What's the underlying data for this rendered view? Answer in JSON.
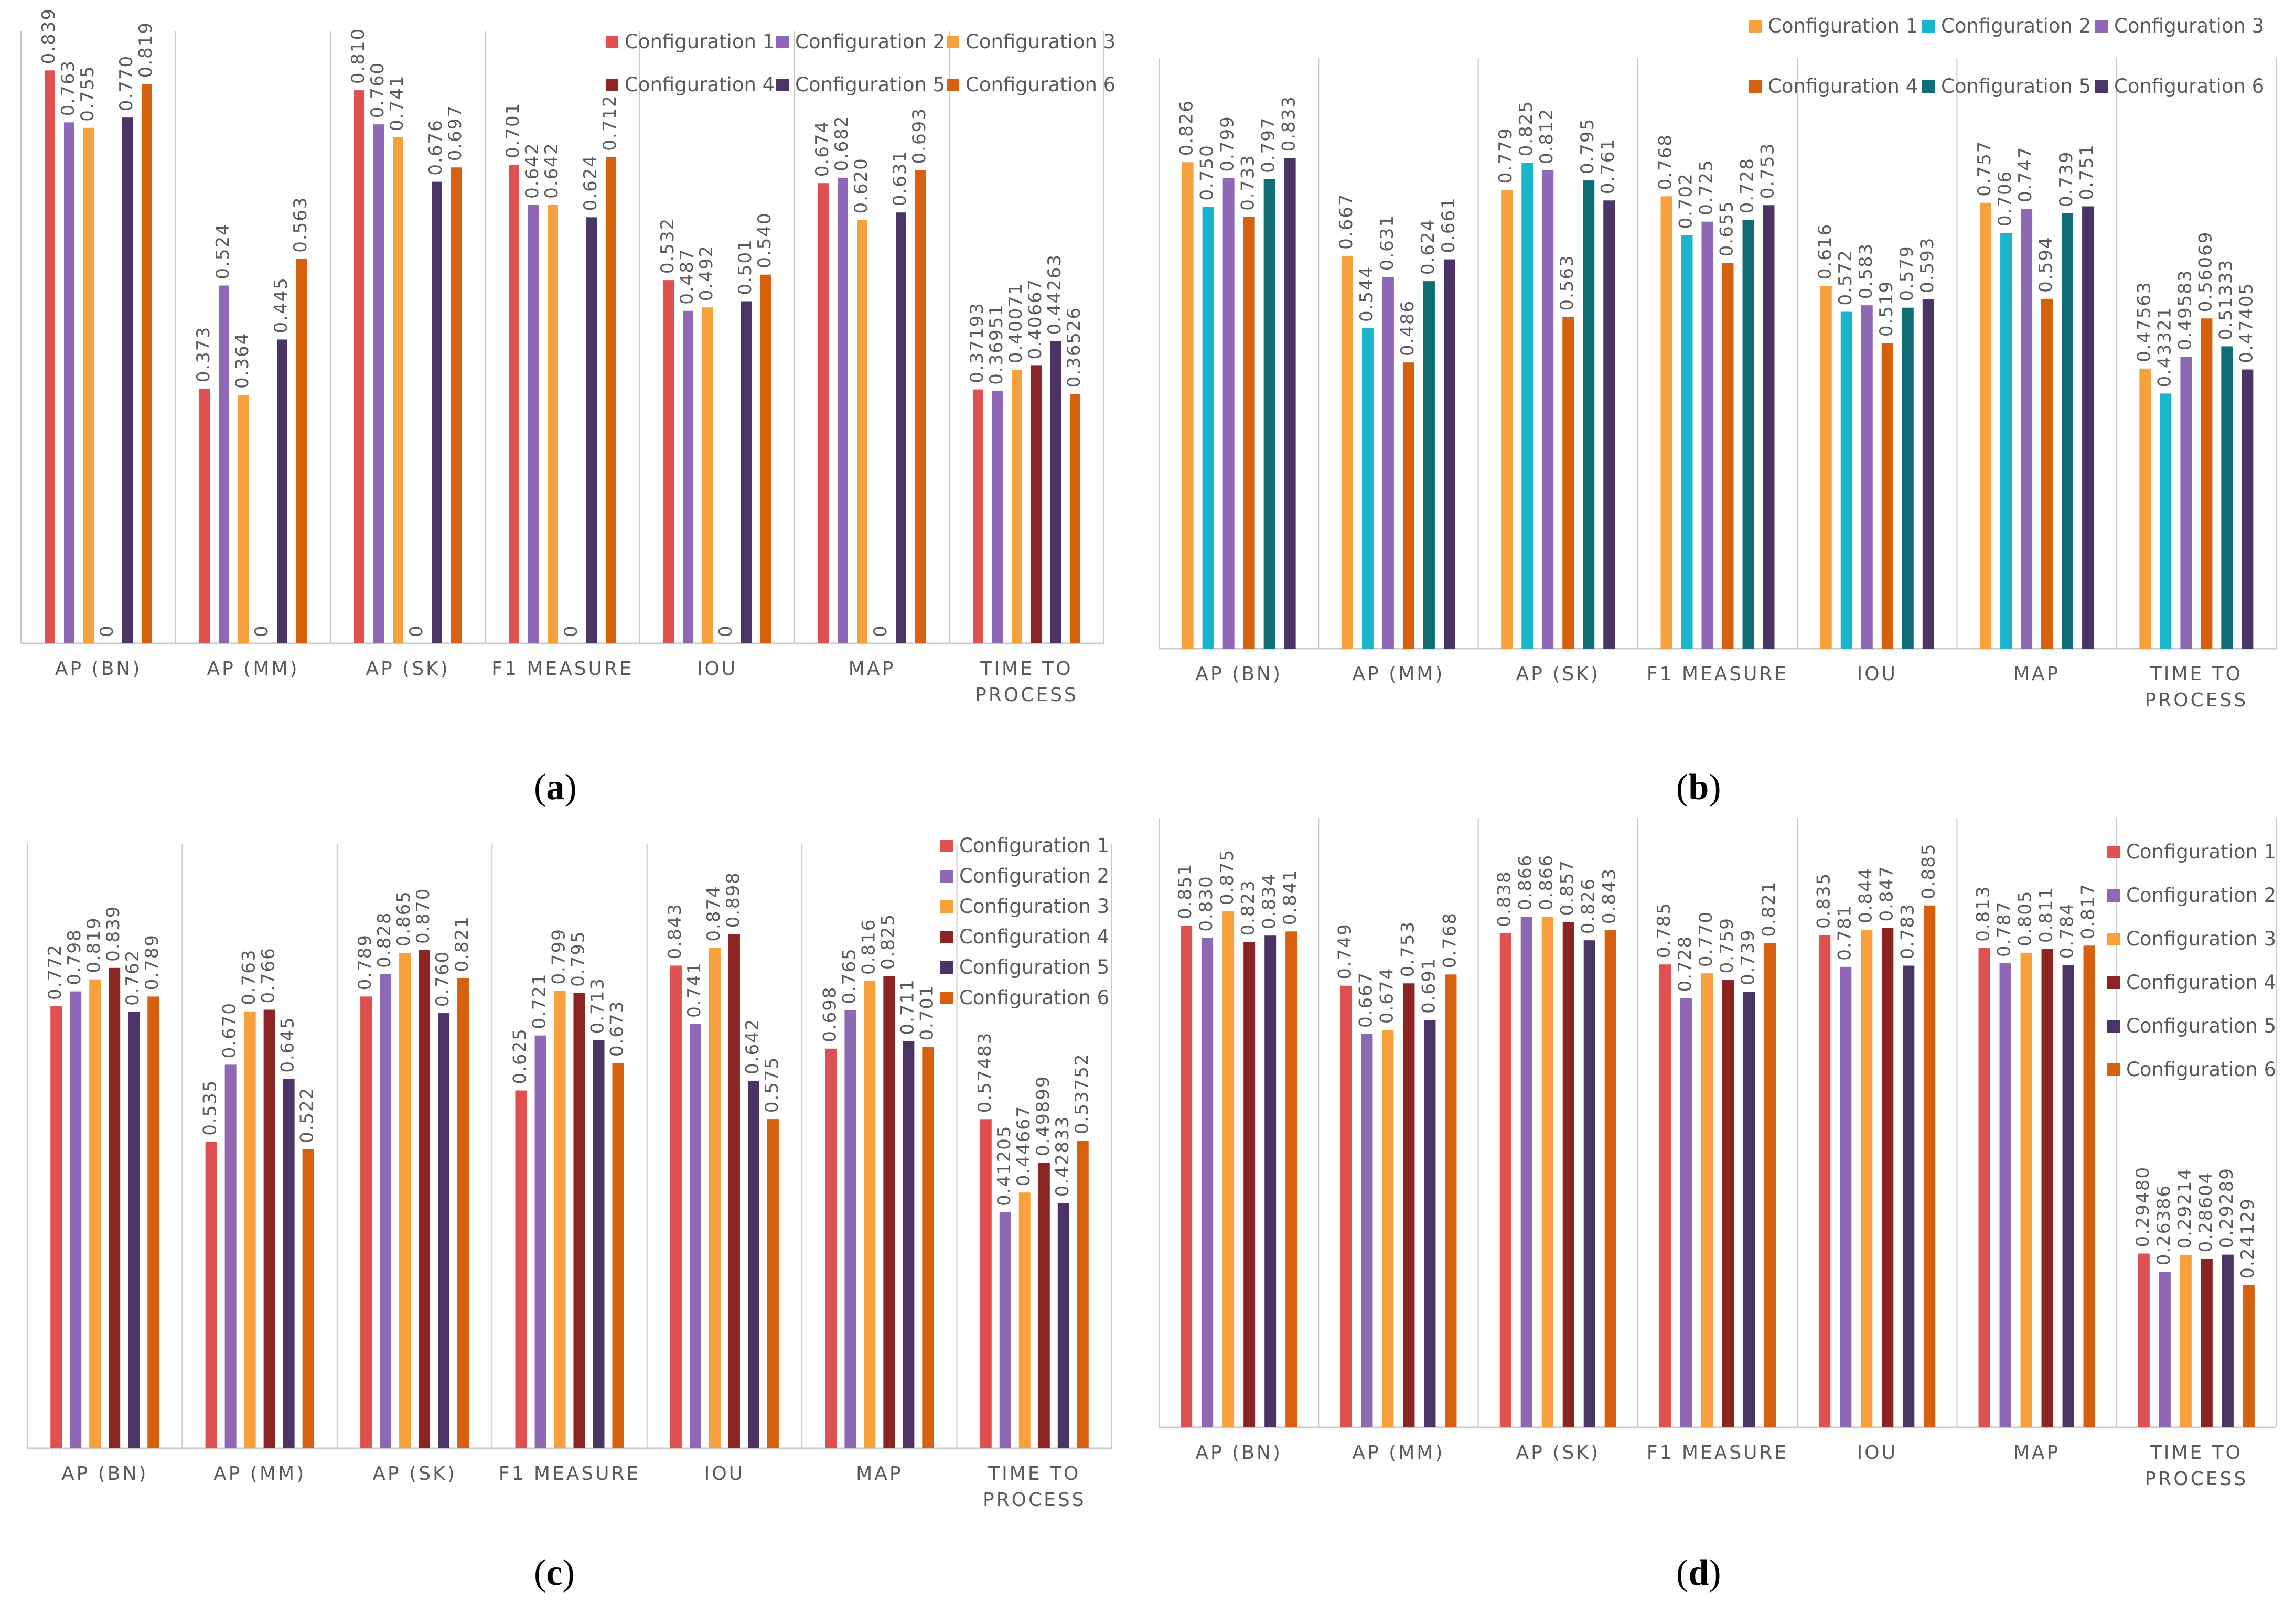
{
  "colors": {
    "palette_a": [
      "#e05050",
      "#8e68b4",
      "#f7a03c",
      "#8c2424",
      "#4c3466",
      "#d7600e"
    ],
    "palette_b": [
      "#f7a03c",
      "#1ab5cc",
      "#8e68b4",
      "#d7600e",
      "#0f6e74",
      "#4c3466"
    ],
    "axis": "#c8c8c8",
    "label": "#595959"
  },
  "captions": [
    {
      "open": "(",
      "letter": "a",
      "close": ")"
    },
    {
      "open": "(",
      "letter": "b",
      "close": ")"
    },
    {
      "open": "(",
      "letter": "c",
      "close": ")"
    },
    {
      "open": "(",
      "letter": "d",
      "close": ")"
    }
  ],
  "chart_data": [
    {
      "type": "bar",
      "panel": "a",
      "categories": [
        "AP (BN)",
        "AP (MM)",
        "AP (SK)",
        "F1 MEASURE",
        "IOU",
        "MAP",
        "TIME TO PROCESS"
      ],
      "legend_position": "top-right",
      "ylim": [
        0,
        0.85
      ],
      "series": [
        {
          "name": "Configuration 1",
          "values": [
            0.839,
            0.373,
            0.81,
            0.701,
            0.532,
            0.674,
            0.37193
          ],
          "labels": [
            "0.839",
            "0.373",
            "0.810",
            "0.701",
            "0.532",
            "0.674",
            "0.37193"
          ]
        },
        {
          "name": "Configuration 2",
          "values": [
            0.763,
            0.524,
            0.76,
            0.642,
            0.487,
            0.682,
            0.36951
          ],
          "labels": [
            "0.763",
            "0.524",
            "0.760",
            "0.642",
            "0.487",
            "0.682",
            "0.36951"
          ]
        },
        {
          "name": "Configuration 3",
          "values": [
            0.755,
            0.364,
            0.741,
            0.642,
            0.492,
            0.62,
            0.40071
          ],
          "labels": [
            "0.755",
            "0.364",
            "0.741",
            "0.642",
            "0.492",
            "0.620",
            "0.40071"
          ]
        },
        {
          "name": "Configuration 4",
          "values": [
            0,
            0,
            0,
            0,
            0,
            0,
            0.40667
          ],
          "labels": [
            "0",
            "0",
            "0",
            "0",
            "0",
            "0",
            "0.40667"
          ]
        },
        {
          "name": "Configuration 5",
          "values": [
            0.77,
            0.445,
            0.676,
            0.624,
            0.501,
            0.631,
            0.44263
          ],
          "labels": [
            "0.770",
            "0.445",
            "0.676",
            "0.624",
            "0.501",
            "0.631",
            "0.44263"
          ]
        },
        {
          "name": "Configuration 6",
          "values": [
            0.819,
            0.563,
            0.697,
            0.712,
            0.54,
            0.693,
            0.36526
          ],
          "labels": [
            "0.819",
            "0.563",
            "0.697",
            "0.712",
            "0.540",
            "0.693",
            "0.36526"
          ]
        }
      ]
    },
    {
      "type": "bar",
      "panel": "b",
      "categories": [
        "AP (BN)",
        "AP (MM)",
        "AP (SK)",
        "F1 MEASURE",
        "IOU",
        "MAP",
        "TIME TO PROCESS"
      ],
      "legend_position": "top",
      "ylim": [
        0,
        0.95
      ],
      "series": [
        {
          "name": "Configuration 1",
          "values": [
            0.826,
            0.667,
            0.779,
            0.768,
            0.616,
            0.757,
            0.47563
          ],
          "labels": [
            "0.826",
            "0.667",
            "0.779",
            "0.768",
            "0.616",
            "0.757",
            "0.47563"
          ]
        },
        {
          "name": "Configuration 2",
          "values": [
            0.75,
            0.544,
            0.825,
            0.702,
            0.572,
            0.706,
            0.43321
          ],
          "labels": [
            "0.750",
            "0.544",
            "0.825",
            "0.702",
            "0.572",
            "0.706",
            "0.43321"
          ]
        },
        {
          "name": "Configuration 3",
          "values": [
            0.799,
            0.631,
            0.812,
            0.725,
            0.583,
            0.747,
            0.49583
          ],
          "labels": [
            "0.799",
            "0.631",
            "0.812",
            "0.725",
            "0.583",
            "0.747",
            "0.49583"
          ]
        },
        {
          "name": "Configuration 4",
          "values": [
            0.733,
            0.486,
            0.563,
            0.655,
            0.519,
            0.594,
            0.56069
          ],
          "labels": [
            "0.733",
            "0.486",
            "0.563",
            "0.655",
            "0.519",
            "0.594",
            "0.56069"
          ]
        },
        {
          "name": "Configuration 5",
          "values": [
            0.797,
            0.624,
            0.795,
            0.728,
            0.579,
            0.739,
            0.51333
          ],
          "labels": [
            "0.797",
            "0.624",
            "0.795",
            "0.728",
            "0.579",
            "0.739",
            "0.51333"
          ]
        },
        {
          "name": "Configuration 6",
          "values": [
            0.833,
            0.661,
            0.761,
            0.753,
            0.593,
            0.751,
            0.47405
          ],
          "labels": [
            "0.833",
            "0.661",
            "0.761",
            "0.753",
            "0.593",
            "0.751",
            "0.47405"
          ]
        }
      ]
    },
    {
      "type": "bar",
      "panel": "c",
      "categories": [
        "AP (BN)",
        "AP (MM)",
        "AP (SK)",
        "F1 MEASURE",
        "IOU",
        "MAP",
        "TIME TO PROCESS"
      ],
      "legend_position": "right",
      "ylim": [
        0,
        1.0
      ],
      "series": [
        {
          "name": "Configuration 1",
          "values": [
            0.772,
            0.535,
            0.789,
            0.625,
            0.843,
            0.698,
            0.57483
          ],
          "labels": [
            "0.772",
            "0.535",
            "0.789",
            "0.625",
            "0.843",
            "0.698",
            "0.57483"
          ]
        },
        {
          "name": "Configuration 2",
          "values": [
            0.798,
            0.67,
            0.828,
            0.721,
            0.741,
            0.765,
            0.41205
          ],
          "labels": [
            "0.798",
            "0.670",
            "0.828",
            "0.721",
            "0.741",
            "0.765",
            "0.41205"
          ]
        },
        {
          "name": "Configuration 3",
          "values": [
            0.819,
            0.763,
            0.865,
            0.799,
            0.874,
            0.816,
            0.44667
          ],
          "labels": [
            "0.819",
            "0.763",
            "0.865",
            "0.799",
            "0.874",
            "0.816",
            "0.44667"
          ]
        },
        {
          "name": "Configuration 4",
          "values": [
            0.839,
            0.766,
            0.87,
            0.795,
            0.898,
            0.825,
            0.49899
          ],
          "labels": [
            "0.839",
            "0.766",
            "0.870",
            "0.795",
            "0.898",
            "0.825",
            "0.49899"
          ]
        },
        {
          "name": "Configuration 5",
          "values": [
            0.762,
            0.645,
            0.76,
            0.713,
            0.642,
            0.711,
            0.42833
          ],
          "labels": [
            "0.762",
            "0.645",
            "0.760",
            "0.713",
            "0.642",
            "0.711",
            "0.42833"
          ]
        },
        {
          "name": "Configuration 6",
          "values": [
            0.789,
            0.522,
            0.821,
            0.673,
            0.575,
            0.701,
            0.53752
          ],
          "labels": [
            "0.789",
            "0.522",
            "0.821",
            "0.673",
            "0.575",
            "0.701",
            "0.53752"
          ]
        }
      ]
    },
    {
      "type": "bar",
      "panel": "d",
      "categories": [
        "AP (BN)",
        "AP (MM)",
        "AP (SK)",
        "F1 MEASURE",
        "IOU",
        "MAP",
        "TIME TO PROCESS"
      ],
      "legend_position": "right",
      "ylim": [
        0,
        0.98
      ],
      "series": [
        {
          "name": "Configuration 1",
          "values": [
            0.851,
            0.749,
            0.838,
            0.785,
            0.835,
            0.813,
            0.2948
          ],
          "labels": [
            "0.851",
            "0.749",
            "0.838",
            "0.785",
            "0.835",
            "0.813",
            "0.29480"
          ]
        },
        {
          "name": "Configuration 2",
          "values": [
            0.83,
            0.667,
            0.866,
            0.728,
            0.781,
            0.787,
            0.26386
          ],
          "labels": [
            "0.830",
            "0.667",
            "0.866",
            "0.728",
            "0.781",
            "0.787",
            "0.26386"
          ]
        },
        {
          "name": "Configuration 3",
          "values": [
            0.875,
            0.674,
            0.866,
            0.77,
            0.844,
            0.805,
            0.29214
          ],
          "labels": [
            "0.875",
            "0.674",
            "0.866",
            "0.770",
            "0.844",
            "0.805",
            "0.29214"
          ]
        },
        {
          "name": "Configuration 4",
          "values": [
            0.823,
            0.753,
            0.857,
            0.759,
            0.847,
            0.811,
            0.28604
          ],
          "labels": [
            "0.823",
            "0.753",
            "0.857",
            "0.759",
            "0.847",
            "0.811",
            "0.28604"
          ]
        },
        {
          "name": "Configuration 5",
          "values": [
            0.834,
            0.691,
            0.826,
            0.739,
            0.783,
            0.784,
            0.29289
          ],
          "labels": [
            "0.834",
            "0.691",
            "0.826",
            "0.739",
            "0.783",
            "0.784",
            "0.29289"
          ]
        },
        {
          "name": "Configuration 6",
          "values": [
            0.841,
            0.768,
            0.843,
            0.821,
            0.885,
            0.817,
            0.24129
          ],
          "labels": [
            "0.841",
            "0.768",
            "0.843",
            "0.821",
            "0.885",
            "0.817",
            "0.24129"
          ]
        }
      ]
    }
  ]
}
